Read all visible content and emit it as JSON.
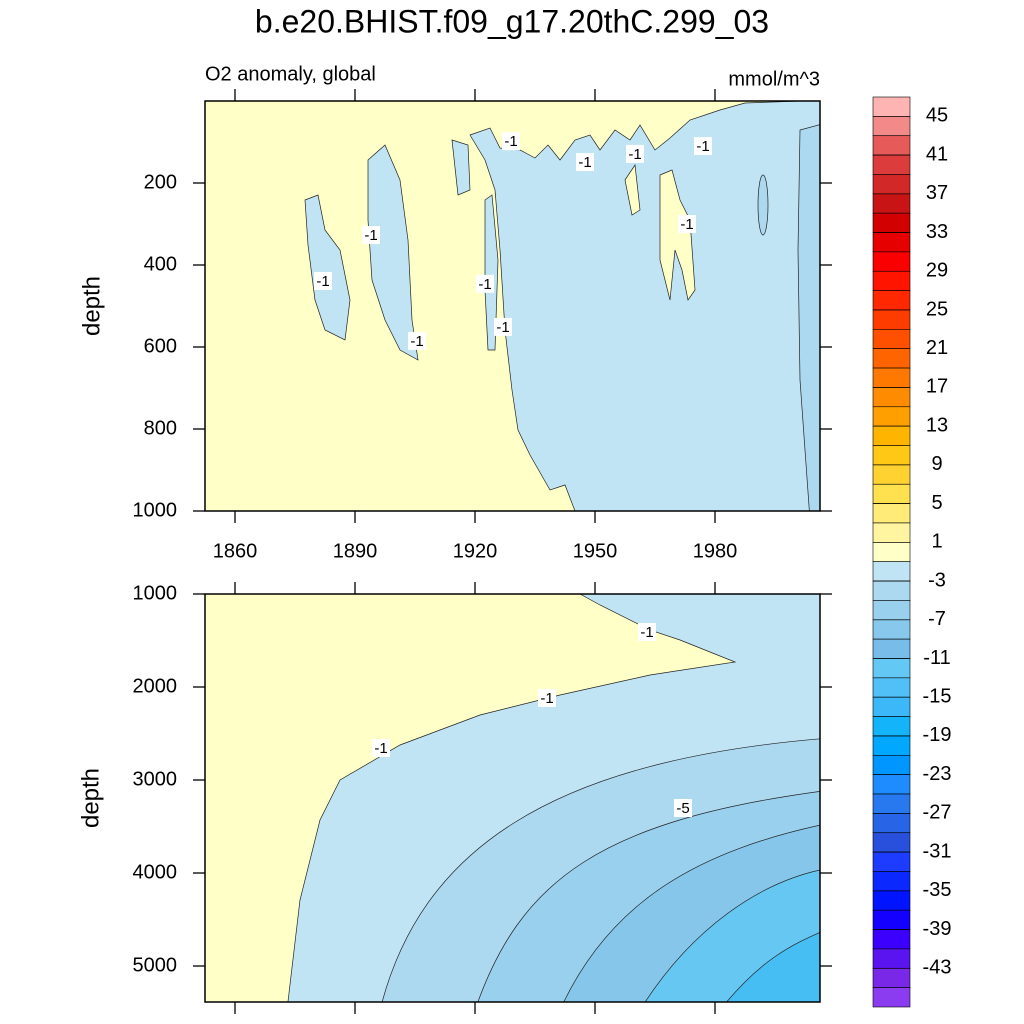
{
  "title": "b.e20.BHIST.f09_g17.20thC.299_03",
  "chart_data": [
    {
      "type": "contour",
      "subtitle_left": "O2 anomaly, global",
      "subtitle_right": "mmol/m^3",
      "ylabel": "depth",
      "xlim": [
        1852.5,
        2006.25
      ],
      "xticks": [
        1860,
        1890,
        1920,
        1950,
        1980
      ],
      "ylim": [
        0,
        1000
      ],
      "yticks": [
        200,
        400,
        600,
        800,
        1000
      ],
      "y_reversed": true,
      "contour_labels": {
        "x": [
          1929,
          1894,
          1882,
          1905.5,
          1922.5,
          1927,
          1947.5,
          1960,
          1977,
          1973
        ],
        "y": [
          98,
          327,
          439,
          585,
          446,
          551,
          149,
          129,
          110,
          300
        ],
        "values": [
          -1,
          -1,
          -1,
          -1,
          -1,
          -1,
          -1,
          -1,
          -1,
          -1
        ]
      }
    },
    {
      "type": "contour",
      "ylabel": "depth",
      "xlim": [
        1852.5,
        2006.25
      ],
      "xticks": [
        1860,
        1890,
        1920,
        1950,
        1980
      ],
      "ylim": [
        1000,
        5387
      ],
      "yticks": [
        1000,
        2000,
        3000,
        4000,
        5000
      ],
      "y_reversed": true,
      "contour_labels": {
        "x": [
          1963,
          1938,
          1896.5,
          1972
        ],
        "y": [
          1409,
          2118,
          2656,
          3301
        ],
        "values": [
          -1,
          -1,
          -1,
          -5
        ]
      }
    }
  ],
  "colorbar": {
    "range": [
      -47,
      47
    ],
    "ticks": [
      45,
      41,
      37,
      33,
      29,
      25,
      21,
      17,
      13,
      9,
      5,
      1,
      -3,
      -7,
      -11,
      -15,
      -19,
      -23,
      -27,
      -31,
      -35,
      -39,
      -43
    ],
    "colors": [
      "#ffb4b4",
      "#f28a8a",
      "#e65a5a",
      "#dc3c3c",
      "#d22828",
      "#c81414",
      "#d20000",
      "#e60000",
      "#fa0000",
      "#ff1400",
      "#ff2800",
      "#ff3c00",
      "#ff5000",
      "#ff6400",
      "#ff7800",
      "#ff8c00",
      "#ffa000",
      "#ffb400",
      "#ffc814",
      "#ffd232",
      "#ffe150",
      "#ffeb78",
      "#fff5a0",
      "#ffffc8",
      "#c0e4f4",
      "#acd8f0",
      "#98d0ee",
      "#88c8ec",
      "#78bcea",
      "#64c8f4",
      "#50c0f6",
      "#3cb8f8",
      "#14b4fa",
      "#00a8ff",
      "#0096ff",
      "#1e8cff",
      "#2878f0",
      "#2864e6",
      "#2850dc",
      "#1e3cff",
      "#0a28ff",
      "#0014ff",
      "#1400ff",
      "#3c00ff",
      "#5a14f0",
      "#7828e6",
      "#8c3cf0"
    ]
  }
}
